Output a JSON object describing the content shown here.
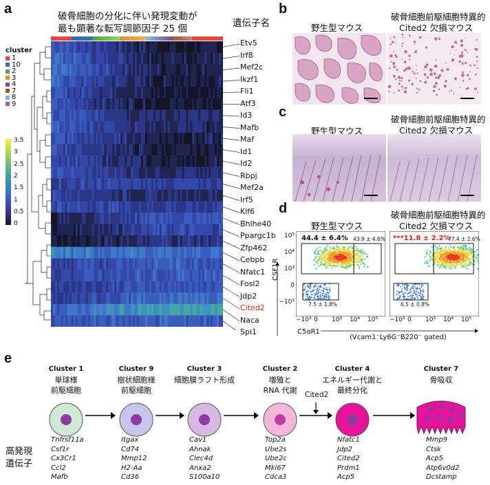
{
  "panel_a": {
    "label": "a",
    "title_line1": "破骨細胞の分化に伴い発現変動が",
    "title_line2": "最も顕著な転写調節因子 25 個",
    "gene_header": "遺伝子名",
    "cluster_legend_title": "cluster",
    "clusters": [
      {
        "name": "1",
        "color": "#e8463b"
      },
      {
        "name": "10",
        "color": "#3a6bb5"
      },
      {
        "name": "2",
        "color": "#4aa64b"
      },
      {
        "name": "3",
        "color": "#f08a2a"
      },
      {
        "name": "4",
        "color": "#7a4fa0"
      },
      {
        "name": "7",
        "color": "#9c5a32"
      },
      {
        "name": "8",
        "color": "#7ab8e0"
      },
      {
        "name": "9",
        "color": "#8e5fb0"
      }
    ],
    "scale_ticks": [
      "3.5",
      "3",
      "2.5",
      "2",
      "1.5",
      "1",
      "0.5",
      "0"
    ],
    "genes": [
      "Etv5",
      "Irf8",
      "Mef2c",
      "Ikzf1",
      "Fli1",
      "Atf3",
      "Id3",
      "Mafb",
      "Maf",
      "Id1",
      "Id2",
      "Rbpj",
      "Mef2a",
      "Irf5",
      "Klf6",
      "Bhlhe40",
      "Ppargc1b",
      "Zfp462",
      "Cebpb",
      "Nfatc1",
      "Fosl2",
      "Jdp2",
      "Cited2",
      "Naca",
      "Spi1"
    ],
    "highlight_gene": "Cited2"
  },
  "panel_b": {
    "label": "b",
    "wt": "野生型マウス",
    "ko_line1": "破骨細胞前駆細胞特異的",
    "ko_line2": "Cited2 欠損マウス"
  },
  "panel_c": {
    "label": "c",
    "wt": "野生型マウス",
    "ko_line1": "破骨細胞前駆細胞特異的",
    "ko_line2": "Cited2 欠損マウス"
  },
  "panel_d": {
    "label": "d",
    "wt": "野生型マウス",
    "ko_line1": "破骨細胞前駆細胞特異的",
    "ko_line2": "Cited2 欠損マウス",
    "wt_main": "44.4 ± 6.4%",
    "wt_side": "43.9 ± 4.6%",
    "wt_low": "7.5 ± 1.8%",
    "ko_main": "***11.8 ± 2.2%",
    "ko_side": "77.4 ± 2.6%",
    "ko_low": "6.5 ± 0.8%",
    "y_axis": "CSF1R",
    "x_axis": "C5aR1",
    "gate_note": "(Vcam1⁻Ly6G⁻B220⁻ gated)",
    "y_ticks": [
      "10⁵",
      "10⁴",
      "10³",
      "0",
      "−10³"
    ],
    "x_ticks": [
      "−10³",
      "0",
      "10³",
      "10⁴",
      "10⁵"
    ],
    "x_ticks_ko": [
      "−10³",
      "0",
      "10³",
      "10⁴",
      "10⁵"
    ]
  },
  "panel_e": {
    "label": "e",
    "row_label_line1": "高発現",
    "row_label_line2": "遺伝子",
    "cited2_arrow": "Cited2",
    "stages": [
      {
        "name": "Cluster 1",
        "desc": [
          "単球様",
          "前駆細胞"
        ],
        "genes": [
          "Tnfrsf11a",
          "Csf1r",
          "Cx3Cr1",
          "Ccl2",
          "Mafb"
        ],
        "fill": "#cfe9d4",
        "nucleus": "#8e3aa0"
      },
      {
        "name": "Cluster 9",
        "desc": [
          "樹状細胞様",
          "前駆細胞"
        ],
        "genes": [
          "Itgax",
          "Cd74",
          "Mmp12",
          "H2-Aa",
          "Cd36"
        ],
        "fill": "#c4c4ec",
        "nucleus": "#8e3aa0"
      },
      {
        "name": "Cluster 3",
        "desc": [
          "細胞膜ラフト形成"
        ],
        "genes": [
          "Cav1",
          "Ahnak",
          "Clec4d",
          "Anxa2",
          "S100a10"
        ],
        "fill": "#d9b8e6",
        "nucleus": "#8e3aa0"
      },
      {
        "name": "Cluster 2",
        "desc": [
          "増殖と",
          "RNA 代謝"
        ],
        "genes": [
          "Top2a",
          "Ube2s",
          "Ube2c",
          "Mki67",
          "Cdca3"
        ],
        "fill": "#f4b6d8",
        "nucleus": "#c23aa8"
      },
      {
        "name": "Cluster 4",
        "desc": [
          "エネルギー代謝と",
          "最終分化"
        ],
        "genes": [
          "Nfatc1",
          "Jdp2",
          "Cited2",
          "Prdm1",
          "Acp5"
        ],
        "fill": "#e6139a",
        "nucleus": "#8e3aa0"
      },
      {
        "name": "Cluster 7",
        "desc": [
          "骨吸収"
        ],
        "genes": [
          "Mmp9",
          "Ctsk",
          "Acp5",
          "Atp6v0d2",
          "Dcstamp"
        ],
        "fill": "#e6139a",
        "nucleus": "#8e3aa0"
      }
    ]
  }
}
